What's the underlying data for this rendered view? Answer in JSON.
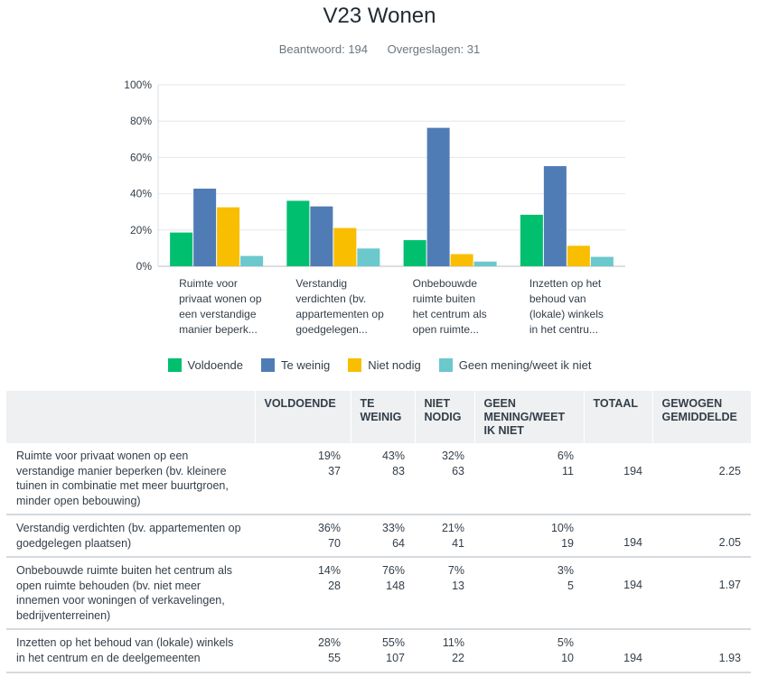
{
  "title": "V23 Wonen",
  "answered": "Beantwoord: 194",
  "skipped": "Overgeslagen: 31",
  "chart_data": {
    "type": "bar",
    "categories": [
      [
        "Ruimte voor",
        "privaat wonen op",
        "een verstandige",
        "manier beperk..."
      ],
      [
        "Verstandig",
        "verdichten (bv.",
        "appartementen op",
        "goedgelegen..."
      ],
      [
        "Onbebouwde",
        "ruimte buiten",
        "het centrum als",
        "open ruimte..."
      ],
      [
        "Inzetten op het",
        "behoud van",
        "(lokale) winkels",
        "in het centru..."
      ]
    ],
    "series": [
      {
        "name": "Voldoende",
        "color": "#00bf6f",
        "values": [
          18.6,
          36.1,
          14.4,
          28.4
        ]
      },
      {
        "name": "Te weinig",
        "color": "#507cb6",
        "values": [
          42.8,
          33.0,
          76.3,
          55.2
        ]
      },
      {
        "name": "Niet nodig",
        "color": "#f9be00",
        "values": [
          32.5,
          21.1,
          6.7,
          11.3
        ]
      },
      {
        "name": "Geen mening/weet ik niet",
        "color": "#6bc8cd",
        "values": [
          5.7,
          9.8,
          2.6,
          5.2
        ]
      }
    ],
    "yticks": [
      "0%",
      "20%",
      "40%",
      "60%",
      "80%",
      "100%"
    ],
    "ylim": [
      0,
      100
    ],
    "grid": true,
    "legend": "bottom"
  },
  "table": {
    "headers": [
      "VOLDOENDE",
      "TE WEINIG",
      "NIET NODIG",
      "GEEN MENING/WEET IK NIET",
      "TOTAAL",
      "GEWOGEN GEMIDDELDE"
    ],
    "rows": [
      {
        "question": "Ruimte voor privaat wonen op een verstandige manier beperken (bv. kleinere tuinen in combinatie met meer buurtgroen, minder open bebouwing)",
        "cells": [
          [
            "19%",
            "37"
          ],
          [
            "43%",
            "83"
          ],
          [
            "32%",
            "63"
          ],
          [
            "6%",
            "11"
          ]
        ],
        "total": "194",
        "weighted": "2.25"
      },
      {
        "question": "Verstandig verdichten (bv. appartementen op goedgelegen plaatsen)",
        "cells": [
          [
            "36%",
            "70"
          ],
          [
            "33%",
            "64"
          ],
          [
            "21%",
            "41"
          ],
          [
            "10%",
            "19"
          ]
        ],
        "total": "194",
        "weighted": "2.05"
      },
      {
        "question": "Onbebouwde ruimte buiten het centrum als open ruimte behouden (bv. niet meer innemen voor woningen of verkavelingen, bedrijventerreinen)",
        "cells": [
          [
            "14%",
            "28"
          ],
          [
            "76%",
            "148"
          ],
          [
            "7%",
            "13"
          ],
          [
            "3%",
            "5"
          ]
        ],
        "total": "194",
        "weighted": "1.97"
      },
      {
        "question": "Inzetten op het behoud van (lokale) winkels in het centrum en de deelgemeenten",
        "cells": [
          [
            "28%",
            "55"
          ],
          [
            "55%",
            "107"
          ],
          [
            "11%",
            "22"
          ],
          [
            "5%",
            "10"
          ]
        ],
        "total": "194",
        "weighted": "1.93"
      }
    ]
  }
}
